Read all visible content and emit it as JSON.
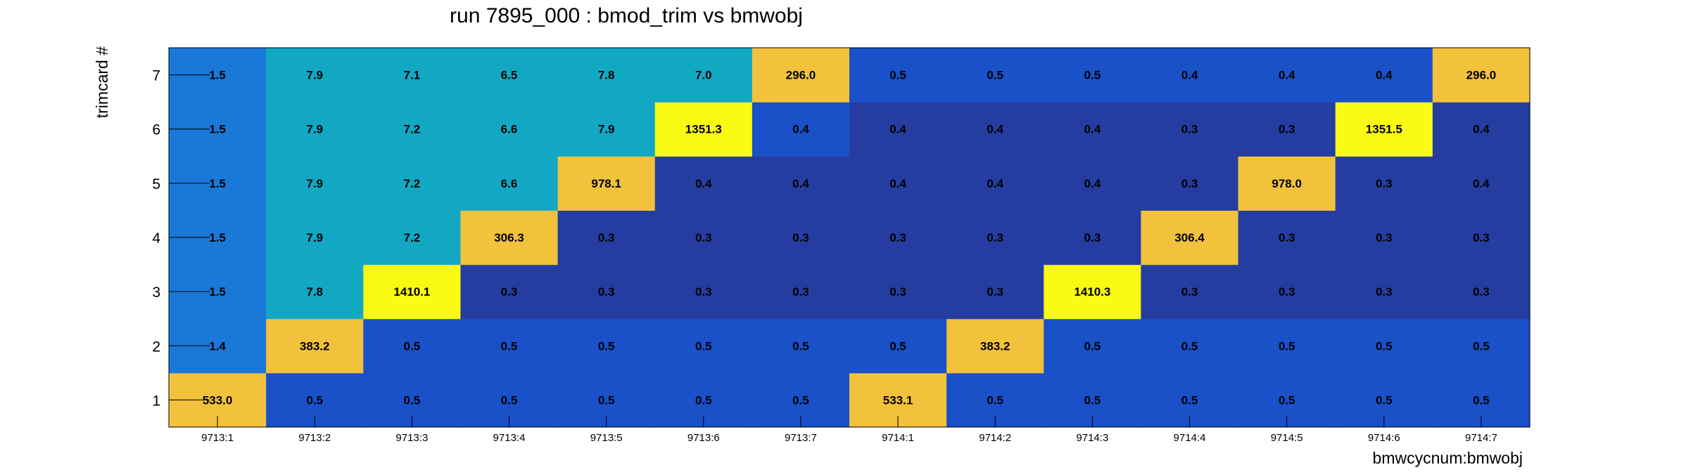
{
  "chart_data": {
    "type": "heatmap",
    "title": "run 7895_000 : bmod_trim vs bmwobj",
    "xlabel": "bmwcycnum:bmwobj",
    "ylabel": "trimcard #",
    "x_categories": [
      "9713:1",
      "9713:2",
      "9713:3",
      "9713:4",
      "9713:5",
      "9713:6",
      "9713:7",
      "9714:1",
      "9714:2",
      "9714:3",
      "9714:4",
      "9714:5",
      "9714:6",
      "9714:7"
    ],
    "y_categories": [
      "1",
      "2",
      "3",
      "4",
      "5",
      "6",
      "7"
    ],
    "values": [
      [
        533.0,
        0.5,
        0.5,
        0.5,
        0.5,
        0.5,
        0.5,
        533.1,
        0.5,
        0.5,
        0.5,
        0.5,
        0.5,
        0.5
      ],
      [
        1.4,
        383.2,
        0.5,
        0.5,
        0.5,
        0.5,
        0.5,
        0.5,
        383.2,
        0.5,
        0.5,
        0.5,
        0.5,
        0.5
      ],
      [
        1.5,
        7.8,
        1410.1,
        0.3,
        0.3,
        0.3,
        0.3,
        0.3,
        0.3,
        1410.3,
        0.3,
        0.3,
        0.3,
        0.3
      ],
      [
        1.5,
        7.9,
        7.2,
        306.3,
        0.3,
        0.3,
        0.3,
        0.3,
        0.3,
        0.3,
        306.4,
        0.3,
        0.3,
        0.3
      ],
      [
        1.5,
        7.9,
        7.2,
        6.6,
        978.1,
        0.4,
        0.4,
        0.4,
        0.4,
        0.4,
        0.3,
        978.0,
        0.3,
        0.4
      ],
      [
        1.5,
        7.9,
        7.2,
        6.6,
        7.9,
        1351.3,
        0.4,
        0.4,
        0.4,
        0.4,
        0.3,
        0.3,
        1351.5,
        0.4
      ],
      [
        1.5,
        7.9,
        7.1,
        6.5,
        7.8,
        7.0,
        296.0,
        0.5,
        0.5,
        0.5,
        0.4,
        0.4,
        0.4,
        296.0
      ]
    ],
    "display_labels": [
      [
        "533.0",
        "0.5",
        "0.5",
        "0.5",
        "0.5",
        "0.5",
        "0.5",
        "533.1",
        "0.5",
        "0.5",
        "0.5",
        "0.5",
        "0.5",
        "0.5"
      ],
      [
        "1.4",
        "383.2",
        "0.5",
        "0.5",
        "0.5",
        "0.5",
        "0.5",
        "0.5",
        "383.2",
        "0.5",
        "0.5",
        "0.5",
        "0.5",
        "0.5"
      ],
      [
        "1.5",
        "7.8",
        "1410.1",
        "0.3",
        "0.3",
        "0.3",
        "0.3",
        "0.3",
        "0.3",
        "1410.3",
        "0.3",
        "0.3",
        "0.3",
        "0.3"
      ],
      [
        "1.5",
        "7.9",
        "7.2",
        "306.3",
        "0.3",
        "0.3",
        "0.3",
        "0.3",
        "0.3",
        "0.3",
        "306.4",
        "0.3",
        "0.3",
        "0.3"
      ],
      [
        "1.5",
        "7.9",
        "7.2",
        "6.6",
        "978.1",
        "0.4",
        "0.4",
        "0.4",
        "0.4",
        "0.4",
        "0.3",
        "978.0",
        "0.3",
        "0.4"
      ],
      [
        "1.5",
        "7.9",
        "7.2",
        "6.6",
        "7.9",
        "1351.3",
        "0.4",
        "0.4",
        "0.4",
        "0.4",
        "0.3",
        "0.3",
        "1351.5",
        "0.4"
      ],
      [
        "1.5",
        "7.9",
        "7.1",
        "6.5",
        "7.8",
        "7.0",
        "296.0",
        "0.5",
        "0.5",
        "0.5",
        "0.4",
        "0.4",
        "0.4",
        "296.0"
      ]
    ],
    "colors": {
      "deep": "#253da0",
      "blue": "#1a50c8",
      "mid_blue": "#1a78d8",
      "teal": "#12a8c4",
      "orange": "#f2c23c",
      "yellow": "#fafa12"
    },
    "grid": false,
    "legend": "none"
  }
}
